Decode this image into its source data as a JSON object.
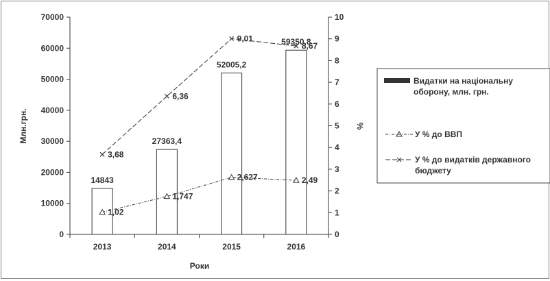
{
  "chart_data": {
    "type": "bar",
    "categories": [
      "2013",
      "2014",
      "2015",
      "2016"
    ],
    "xlabel": "Роки",
    "ylabel": "Млн.грн.",
    "y2label": "%",
    "ylim": [
      0,
      70000
    ],
    "y2lim": [
      0,
      10
    ],
    "yticks": [
      "0",
      "10000",
      "20000",
      "30000",
      "40000",
      "50000",
      "60000",
      "70000"
    ],
    "y2ticks": [
      "0",
      "1",
      "2",
      "3",
      "4",
      "5",
      "6",
      "7",
      "8",
      "9",
      "10"
    ],
    "grid": false,
    "legend_position": "right",
    "series": [
      {
        "name": "Видатки на національну оборону, млн. грн.",
        "kind": "bar",
        "axis": "left",
        "values": [
          14843,
          27363.4,
          52005.2,
          59350.8
        ],
        "labels": [
          "14843",
          "27363,4",
          "52005,2",
          "59350,8"
        ]
      },
      {
        "name": "У % до ВВП",
        "kind": "line",
        "marker": "triangle",
        "axis": "right",
        "values": [
          1.02,
          1.747,
          2.627,
          2.49
        ],
        "labels": [
          "1,02",
          "1,747",
          "2,627",
          "2,49"
        ]
      },
      {
        "name": "У % до видатків державного бюджету",
        "kind": "line",
        "marker": "x",
        "axis": "right",
        "values": [
          3.68,
          6.36,
          9.01,
          8.67
        ],
        "labels": [
          "3,68",
          "6,36",
          "9,01",
          "8,67"
        ]
      }
    ],
    "colors": {
      "bar_fill": "#ffffff",
      "stroke": "#333333",
      "text": "#333333"
    }
  }
}
